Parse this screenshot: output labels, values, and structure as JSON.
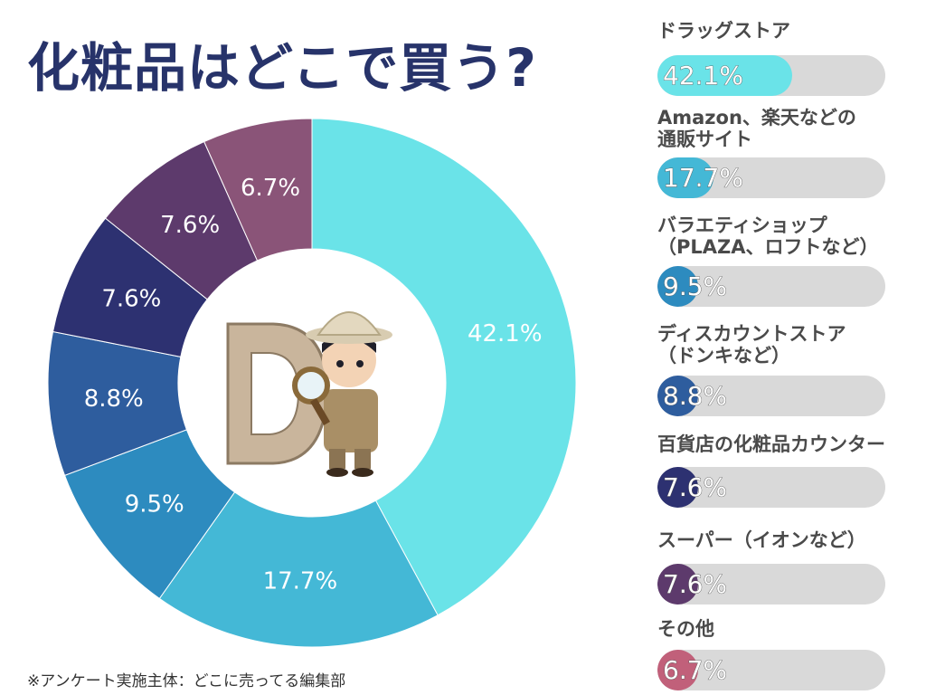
{
  "title": "化粧品はどこで買う?",
  "footnote": "※アンケート実施主体：どこに売ってる編集部",
  "chart_data": {
    "type": "pie",
    "donut": true,
    "categories": [
      "ドラッグストア",
      "Amazon、楽天などの\n通販サイト",
      "バラエティショップ\n（PLAZA、ロフトなど）",
      "ディスカウントストア\n（ドンキなど）",
      "百貨店の化粧品カウンター",
      "スーパー（イオンなど）",
      "その他"
    ],
    "values": [
      42.1,
      17.7,
      9.5,
      8.8,
      7.6,
      7.6,
      6.7
    ],
    "value_labels": [
      "42.1%",
      "17.7%",
      "9.5%",
      "8.8%",
      "7.6%",
      "7.6%",
      "6.7%"
    ],
    "colors": [
      "#6ae3e8",
      "#44b8d6",
      "#2d8bbf",
      "#2e5d9e",
      "#2d3171",
      "#5d3a6c",
      "#8a5478"
    ],
    "legend_bar_colors": [
      "#6ae3e8",
      "#44b8d6",
      "#2d8bbf",
      "#2e5d9e",
      "#2d3171",
      "#5d3a6c",
      "#c1607a"
    ],
    "legend_placement": "right"
  }
}
